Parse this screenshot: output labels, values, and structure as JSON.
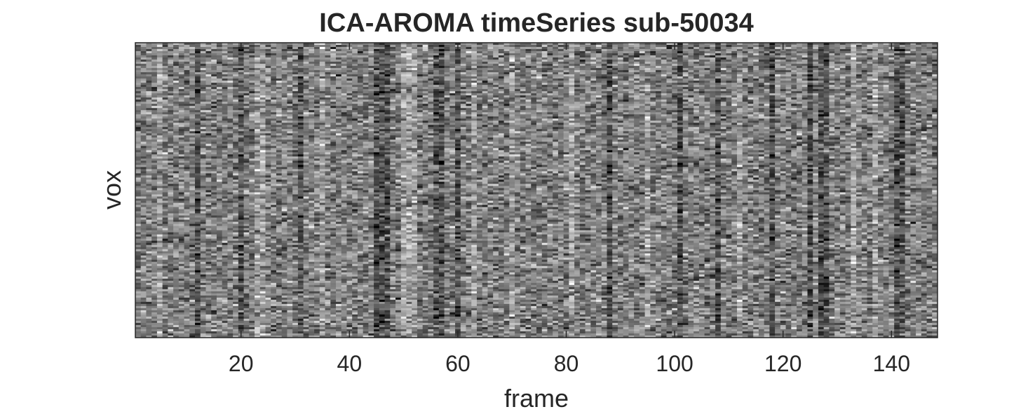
{
  "chart_data": {
    "type": "heatmap",
    "title": "ICA-AROMA timeSeries sub-50034",
    "xlabel": "frame",
    "ylabel": "vox",
    "xlim": [
      0.5,
      148.5
    ],
    "n_frames": 148,
    "n_voxel_rows": 140,
    "colormap": "gray",
    "xticks": [
      20,
      40,
      60,
      80,
      100,
      120,
      140
    ],
    "xtick_labels": [
      "20",
      "40",
      "60",
      "80",
      "100",
      "120",
      "140"
    ],
    "yticks": [],
    "dark_frames": [
      12,
      20,
      31,
      45,
      46,
      47,
      56,
      57,
      60,
      88,
      101,
      108,
      118,
      125,
      127,
      128,
      141,
      142
    ],
    "bright_frames": [
      5,
      23,
      24,
      35,
      50,
      51,
      52,
      63,
      70,
      81,
      95,
      112,
      133,
      137
    ]
  },
  "colors": {
    "axes": "#262626",
    "background": "#ffffff"
  }
}
